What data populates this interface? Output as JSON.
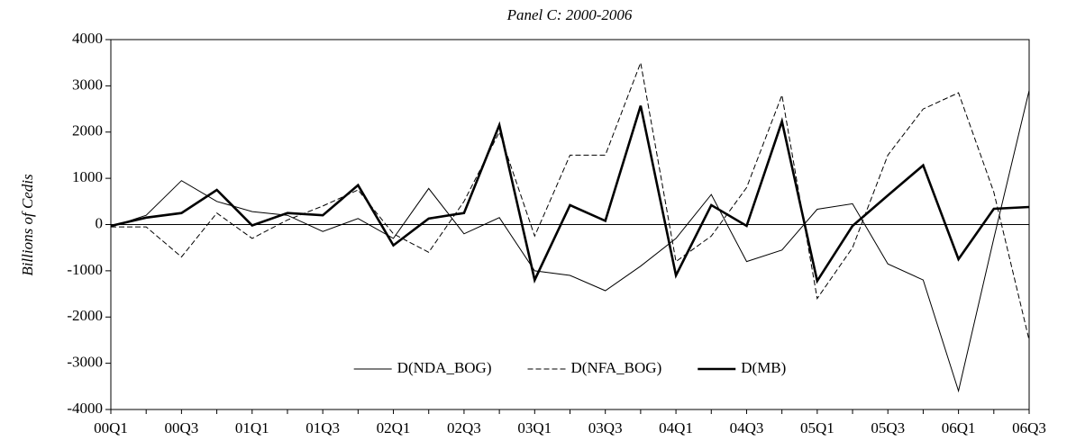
{
  "chart_data": {
    "type": "line",
    "title": "Panel C: 2000-2006",
    "y_label": "Billions of Cedis",
    "categories": [
      "00Q1",
      null,
      "00Q3",
      null,
      "01Q1",
      null,
      "01Q3",
      null,
      "02Q1",
      null,
      "02Q3",
      null,
      "03Q1",
      null,
      "03Q3",
      null,
      "04Q1",
      null,
      "04Q3",
      null,
      "05Q1",
      null,
      "05Q3",
      null,
      "06Q1",
      null,
      "06Q3"
    ],
    "series": [
      {
        "name": "D(NDA_BOG)",
        "color": "#000000",
        "line_style": "solid",
        "line_width": 1,
        "values": [
          -50,
          200,
          950,
          500,
          280,
          200,
          -150,
          130,
          -300,
          780,
          -200,
          150,
          -1000,
          -1100,
          -1430,
          -900,
          -300,
          650,
          -800,
          -550,
          330,
          450,
          -850,
          -1200,
          -3600,
          -300,
          2900
        ]
      },
      {
        "name": "D(NFA_BOG)",
        "color": "#000000",
        "line_style": "dashed",
        "line_width": 1,
        "values": [
          -50,
          -50,
          -700,
          250,
          -300,
          100,
          400,
          750,
          -200,
          -600,
          500,
          2000,
          -250,
          1500,
          1500,
          3500,
          -800,
          -250,
          800,
          2800,
          -1600,
          -500,
          1500,
          2500,
          2850,
          700,
          -2500
        ]
      },
      {
        "name": "D(MB)",
        "color": "#000000",
        "line_style": "solid",
        "line_width": 2.6,
        "values": [
          -30,
          150,
          250,
          750,
          -20,
          250,
          200,
          850,
          -450,
          130,
          250,
          2150,
          -1200,
          420,
          80,
          2570,
          -1100,
          420,
          -30,
          2230,
          -1220,
          -30,
          630,
          1280,
          -750,
          340,
          380
        ]
      }
    ],
    "ylim": [
      -4000,
      4000
    ],
    "yticks": [
      -4000,
      -3000,
      -2000,
      -1000,
      0,
      1000,
      2000,
      3000,
      4000
    ],
    "zero_line": true,
    "legend": "lower center"
  }
}
